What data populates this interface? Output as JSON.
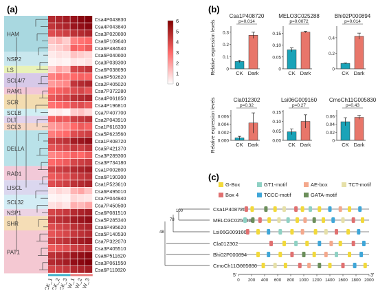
{
  "panel_labels": {
    "a": "(a)",
    "b": "(b)",
    "c": "(c)"
  },
  "heatmap": {
    "genes": [
      "Csa4P043830",
      "Csa4P043840",
      "Csa3P020600",
      "Csa6P109640",
      "Csa6P484540",
      "Csa6P040600",
      "Csa3P039300",
      "Csa6P038690",
      "Csa6P502620",
      "Csa2P405020",
      "Csa7P372280",
      "Csa4P061850",
      "Csa4P196810",
      "Csa7P407700",
      "Csa2P043910",
      "Csa1P616330",
      "Csa5P623560",
      "Csa1P408720",
      "Csa5P421370",
      "Csa3P289300",
      "Csa3P734180",
      "Csa1P002800",
      "Csa6P190300",
      "Csa1P523610",
      "Csa6P495010",
      "Csa7P044940",
      "Csa7P450500",
      "Csa6P081510",
      "Csa5P285340",
      "Csa6P495620",
      "Csa5P140530",
      "Csa7P322070",
      "Csa3P405510",
      "Csa6P511620",
      "Csa3P061550",
      "Csa6P110820"
    ],
    "columns": [
      "CK_1",
      "CK_2",
      "CK_3",
      "W_1",
      "W_2",
      "W_3"
    ],
    "subfamilies": [
      "HAM",
      "NSP2",
      "LS",
      "SCL4/7",
      "RAM1",
      "SCR",
      "SCLB",
      "DLT",
      "SCL3",
      "DELLA",
      "RAD1",
      "LISCL",
      "SCL32",
      "NSP1",
      "SHR",
      "PAT1"
    ],
    "colorbar_ticks": [
      "6",
      "5",
      "4",
      "3",
      "2",
      "1",
      "0"
    ],
    "values": [
      [
        4.8,
        5.0,
        5.2,
        5.5,
        5.8,
        6.0
      ],
      [
        4.5,
        4.8,
        5.0,
        5.4,
        5.6,
        5.8
      ],
      [
        3.8,
        4.0,
        4.2,
        4.6,
        4.8,
        5.0
      ],
      [
        1.2,
        1.5,
        1.0,
        2.5,
        2.8,
        3.0
      ],
      [
        0.8,
        1.0,
        1.3,
        3.2,
        3.0,
        3.4
      ],
      [
        0.4,
        0.6,
        0.5,
        1.2,
        1.0,
        0.8
      ],
      [
        0.2,
        0.3,
        0.2,
        0.5,
        0.4,
        0.6
      ],
      [
        1.0,
        1.8,
        1.5,
        4.0,
        4.2,
        4.5
      ],
      [
        2.5,
        2.8,
        2.6,
        3.0,
        3.2,
        3.1
      ],
      [
        2.0,
        2.2,
        2.4,
        4.5,
        4.8,
        5.0
      ],
      [
        3.0,
        3.2,
        3.4,
        3.8,
        4.0,
        3.6
      ],
      [
        3.5,
        3.8,
        4.0,
        4.6,
        4.8,
        5.0
      ],
      [
        2.8,
        3.0,
        3.2,
        3.6,
        3.8,
        3.5
      ],
      [
        0.3,
        0.4,
        0.2,
        1.0,
        1.2,
        0.8
      ],
      [
        3.2,
        3.5,
        3.4,
        4.2,
        4.4,
        4.6
      ],
      [
        2.0,
        2.2,
        2.4,
        3.0,
        3.4,
        3.2
      ],
      [
        2.6,
        2.8,
        3.0,
        3.8,
        4.0,
        4.2
      ],
      [
        4.2,
        4.4,
        4.6,
        5.2,
        5.4,
        5.6
      ],
      [
        3.6,
        3.8,
        4.0,
        4.4,
        4.2,
        4.6
      ],
      [
        2.4,
        2.6,
        2.8,
        3.2,
        3.0,
        3.4
      ],
      [
        3.0,
        3.2,
        3.4,
        4.0,
        4.2,
        4.4
      ],
      [
        4.0,
        4.2,
        4.4,
        4.8,
        5.0,
        5.2
      ],
      [
        3.4,
        3.6,
        3.8,
        4.2,
        4.4,
        4.6
      ],
      [
        3.8,
        4.0,
        4.2,
        4.6,
        4.8,
        5.0
      ],
      [
        0.5,
        0.8,
        0.6,
        1.5,
        1.8,
        1.2
      ],
      [
        0.2,
        0.3,
        0.2,
        0.8,
        0.6,
        0.5
      ],
      [
        0.6,
        0.8,
        0.5,
        1.6,
        1.4,
        1.8
      ],
      [
        4.0,
        4.2,
        4.4,
        4.8,
        5.0,
        5.2
      ],
      [
        4.4,
        4.6,
        4.8,
        5.2,
        5.4,
        5.6
      ],
      [
        3.8,
        4.0,
        4.2,
        4.6,
        4.8,
        5.0
      ],
      [
        3.6,
        3.8,
        4.0,
        4.4,
        4.6,
        4.8
      ],
      [
        4.2,
        4.4,
        4.6,
        5.0,
        5.2,
        5.4
      ],
      [
        3.4,
        3.6,
        3.8,
        4.2,
        4.4,
        4.6
      ],
      [
        4.6,
        4.8,
        5.0,
        5.4,
        5.6,
        5.8
      ],
      [
        4.8,
        5.0,
        5.2,
        5.6,
        5.8,
        6.0
      ],
      [
        4.0,
        4.2,
        4.4,
        4.8,
        5.0,
        5.2
      ]
    ]
  },
  "chart_data": [
    {
      "type": "bar",
      "title": "Csa1P408720",
      "categories": [
        "CK",
        "Dark"
      ],
      "values": [
        0.06,
        0.275
      ],
      "errors": [
        0.01,
        0.025
      ],
      "ylim": [
        0,
        0.35
      ],
      "yticks": [
        "0",
        "0.1",
        "0.2",
        "0.3"
      ],
      "pvalue": "p=0.014",
      "ylabel": "Relative expression levels"
    },
    {
      "type": "bar",
      "title": "MELO3C025288",
      "categories": [
        "CK",
        "Dark"
      ],
      "values": [
        0.08,
        0.155
      ],
      "errors": [
        0.008,
        0.003
      ],
      "ylim": [
        0,
        0.18
      ],
      "yticks": [
        "0",
        "0.05",
        "0.10",
        "0.15"
      ],
      "pvalue": "p=0.0072",
      "ylabel": ""
    },
    {
      "type": "bar",
      "title": "Bhi02P000894",
      "categories": [
        "CK",
        "Dark"
      ],
      "values": [
        0.07,
        0.42
      ],
      "errors": [
        0.005,
        0.04
      ],
      "ylim": [
        0,
        0.55
      ],
      "yticks": [
        "0",
        "0.2",
        "0.4"
      ],
      "pvalue": "p=0.014",
      "ylabel": ""
    },
    {
      "type": "bar",
      "title": "Cla012302",
      "categories": [
        "CK",
        "Dark"
      ],
      "values": [
        0.0006,
        0.0043
      ],
      "errors": [
        0.0004,
        0.0025
      ],
      "ylim": [
        0,
        0.0075
      ],
      "yticks": [
        "0.000",
        "0.002",
        "0.004",
        "0.006"
      ],
      "pvalue": "p=0.32",
      "ylabel": "Relative expression levels"
    },
    {
      "type": "bar",
      "title": "Lsi06G009160",
      "categories": [
        "CK",
        "Dark"
      ],
      "values": [
        0.045,
        0.1
      ],
      "errors": [
        0.015,
        0.035
      ],
      "ylim": [
        0,
        0.16
      ],
      "yticks": [
        "0.00",
        "0.05",
        "0.10",
        "0.15"
      ],
      "pvalue": "p=0.27",
      "ylabel": ""
    },
    {
      "type": "bar",
      "title": "CmoCh11G005830",
      "categories": [
        "CK",
        "Dark"
      ],
      "values": [
        0.046,
        0.057
      ],
      "errors": [
        0.01,
        0.005
      ],
      "ylim": [
        0,
        0.075
      ],
      "yticks": [
        "0",
        "0.02",
        "0.04",
        "0.06"
      ],
      "pvalue": "p=0.43",
      "ylabel": ""
    }
  ],
  "bar_colors": {
    "CK": "#1aa3b8",
    "Dark": "#e8766a"
  },
  "promoter": {
    "legend": [
      {
        "label": "G-Box",
        "color": "#f2d93a"
      },
      {
        "label": "GT1-motif",
        "color": "#8fd1c4"
      },
      {
        "label": "AE-box",
        "color": "#f4a88c"
      },
      {
        "label": "TCT-motif",
        "color": "#e6e0a8"
      },
      {
        "label": "Box 4",
        "color": "#e07070"
      },
      {
        "label": "TCCC-motif",
        "color": "#3fa6d8"
      },
      {
        "label": "GATA-motif",
        "color": "#6b8e5a"
      }
    ],
    "genes": [
      "Csa1P408720",
      "MELO3C025288",
      "Lsi06G009160",
      "Cla012302",
      "Bhi02P000894",
      "CmoCh11G005830"
    ],
    "bootstrap": [
      "100",
      "78",
      "48"
    ],
    "axis_ticks": [
      "0",
      "200",
      "400",
      "600",
      "800",
      "1000",
      "1200",
      "1400",
      "1600",
      "1800",
      "2000"
    ],
    "axis_left": "5'",
    "axis_right": "3'",
    "motifs": [
      [
        [
          120,
          "Box 4"
        ],
        [
          210,
          "G-Box"
        ],
        [
          420,
          "GATA-motif"
        ],
        [
          560,
          "G-Box"
        ],
        [
          700,
          "TCT-motif"
        ],
        [
          880,
          "Box 4"
        ],
        [
          980,
          "G-Box"
        ],
        [
          1100,
          "GT1-motif"
        ],
        [
          1240,
          "G-Box"
        ],
        [
          1400,
          "TCCC-motif"
        ],
        [
          1560,
          "AE-box"
        ],
        [
          1700,
          "G-Box"
        ],
        [
          1860,
          "TCCC-motif"
        ]
      ],
      [
        [
          100,
          "GT1-motif"
        ],
        [
          220,
          "GATA-motif"
        ],
        [
          330,
          "Box 4"
        ],
        [
          470,
          "G-Box"
        ],
        [
          620,
          "TCT-motif"
        ],
        [
          760,
          "GT1-motif"
        ],
        [
          900,
          "G-Box"
        ],
        [
          1020,
          "AE-box"
        ],
        [
          1160,
          "GATA-motif"
        ],
        [
          1300,
          "G-Box"
        ],
        [
          1450,
          "TCCC-motif"
        ],
        [
          1600,
          "TCT-motif"
        ],
        [
          1760,
          "Box 4"
        ],
        [
          1900,
          "G-Box"
        ]
      ],
      [
        [
          140,
          "Box 4"
        ],
        [
          300,
          "G-Box"
        ],
        [
          460,
          "TCCC-motif"
        ],
        [
          640,
          "GT1-motif"
        ],
        [
          820,
          "G-Box"
        ],
        [
          980,
          "AE-box"
        ],
        [
          1180,
          "G-Box"
        ],
        [
          1340,
          "TCT-motif"
        ],
        [
          1500,
          "Box 4"
        ],
        [
          1680,
          "G-Box"
        ],
        [
          1840,
          "TCCC-motif"
        ]
      ],
      [
        [
          500,
          "Box 4"
        ],
        [
          700,
          "G-Box"
        ],
        [
          880,
          "GT1-motif"
        ],
        [
          1050,
          "G-Box"
        ],
        [
          1240,
          "TCCC-motif"
        ],
        [
          1420,
          "AE-box"
        ],
        [
          1560,
          "G-Box"
        ],
        [
          1760,
          "Box 4"
        ],
        [
          1920,
          "TCCC-motif"
        ]
      ],
      [
        [
          300,
          "G-Box"
        ],
        [
          460,
          "TCCC-motif"
        ],
        [
          640,
          "G-Box"
        ],
        [
          820,
          "Box 4"
        ],
        [
          1000,
          "GATA-motif"
        ],
        [
          1160,
          "G-Box"
        ],
        [
          1340,
          "AE-box"
        ],
        [
          1500,
          "GT1-motif"
        ],
        [
          1700,
          "G-Box"
        ],
        [
          1880,
          "TCCC-motif"
        ]
      ],
      [
        [
          380,
          "G-Box"
        ],
        [
          560,
          "TCT-motif"
        ],
        [
          720,
          "G-Box"
        ],
        [
          940,
          "Box 4"
        ],
        [
          1080,
          "AE-box"
        ],
        [
          1240,
          "GATA-motif"
        ],
        [
          1400,
          "G-Box"
        ],
        [
          1600,
          "Box 4"
        ],
        [
          1780,
          "TCCC-motif"
        ],
        [
          1940,
          "G-Box"
        ]
      ]
    ]
  }
}
